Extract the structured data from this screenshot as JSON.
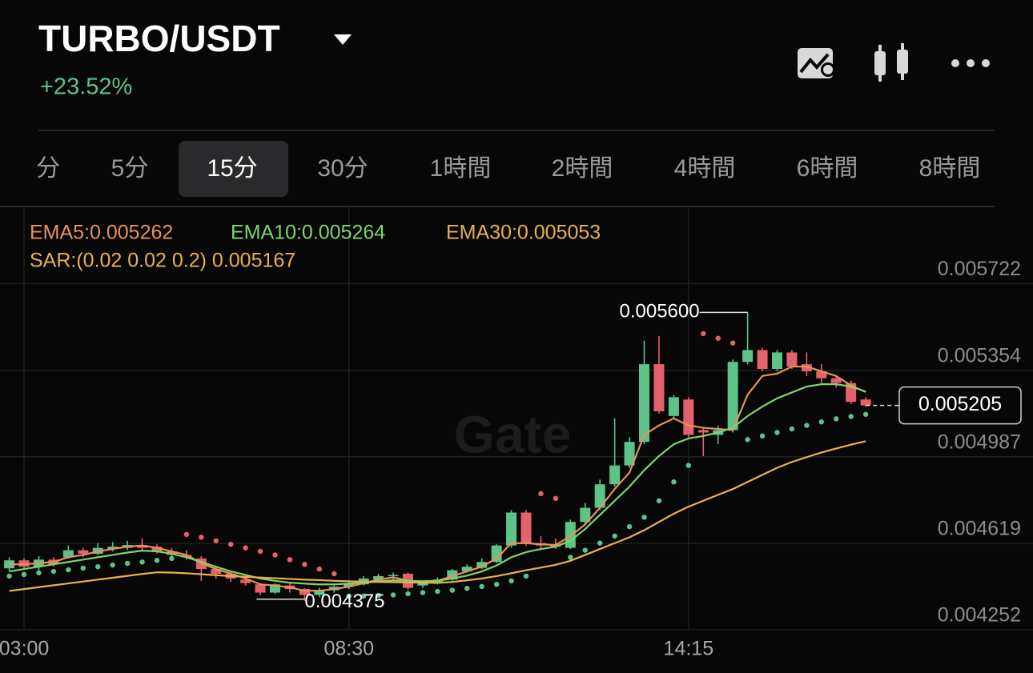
{
  "header": {
    "pair": "TURBO/USDT",
    "change": "+23.52%"
  },
  "tabs": [
    "分",
    "5分",
    "15分",
    "30分",
    "1時間",
    "2時間",
    "4時間",
    "6時間",
    "8時間"
  ],
  "active_tab": 2,
  "chart_data": {
    "type": "candlestick",
    "watermark": "Gate",
    "categories": [
      null,
      "03:00",
      null,
      null,
      null,
      null,
      null,
      null,
      null,
      null,
      null,
      null,
      null,
      null,
      null,
      null,
      null,
      null,
      null,
      null,
      null,
      null,
      null,
      "08:30",
      null,
      null,
      null,
      null,
      null,
      null,
      null,
      null,
      null,
      null,
      null,
      null,
      null,
      null,
      null,
      null,
      null,
      null,
      null,
      null,
      null,
      null,
      "14:15",
      null,
      null,
      null,
      null,
      null,
      null,
      null,
      null,
      null,
      null,
      null,
      null
    ],
    "open": [
      0.004513,
      0.004547,
      0.00452,
      0.00455,
      0.00456,
      0.00459,
      0.004575,
      0.004595,
      0.0046,
      0.004612,
      0.004605,
      0.004585,
      0.00457,
      0.004555,
      0.00451,
      0.00449,
      0.004465,
      0.004445,
      0.00441,
      0.00444,
      0.004425,
      0.0044,
      0.00442,
      0.004435,
      0.004445,
      0.004465,
      0.00448,
      0.00449,
      0.00444,
      0.00445,
      0.004465,
      0.0045,
      0.004515,
      0.00454,
      0.00461,
      0.00475,
      0.00462,
      0.004615,
      0.0046,
      0.00471,
      0.00477,
      0.00487,
      0.00495,
      0.00505,
      0.00538,
      0.00516,
      0.00523,
      0.0051,
      0.00508,
      0.0051,
      0.00539,
      0.00544,
      0.00536,
      0.00543,
      0.00538,
      0.00535,
      0.00532,
      0.0053,
      0.00523
    ],
    "high": [
      0.00456,
      0.004555,
      0.004565,
      0.00456,
      0.00461,
      0.0046,
      0.00462,
      0.004625,
      0.00463,
      0.00464,
      0.004615,
      0.0046,
      0.00459,
      0.004565,
      0.00452,
      0.0045,
      0.004475,
      0.00445,
      0.00445,
      0.00445,
      0.00443,
      0.00443,
      0.00444,
      0.00446,
      0.00448,
      0.00449,
      0.004495,
      0.004495,
      0.00446,
      0.004475,
      0.00451,
      0.00453,
      0.004555,
      0.004615,
      0.00476,
      0.00476,
      0.00465,
      0.00464,
      0.00472,
      0.00479,
      0.00489,
      0.00515,
      0.00507,
      0.00548,
      0.0055,
      0.00525,
      0.00524,
      0.00511,
      0.00512,
      0.0054,
      0.0056,
      0.00545,
      0.00544,
      0.00544,
      0.00543,
      0.00538,
      0.00533,
      0.00531,
      0.00524
    ],
    "low": [
      0.0045,
      0.00451,
      0.004505,
      0.00452,
      0.004555,
      0.00456,
      0.00457,
      0.004585,
      0.00459,
      0.004585,
      0.004575,
      0.00456,
      0.00455,
      0.00446,
      0.00447,
      0.004455,
      0.00444,
      0.0044,
      0.004405,
      0.00441,
      0.004375,
      0.00439,
      0.00441,
      0.004425,
      0.00444,
      0.004455,
      0.00446,
      0.00442,
      0.00443,
      0.004445,
      0.00446,
      0.004495,
      0.00451,
      0.004535,
      0.0046,
      0.00461,
      0.00459,
      0.004595,
      0.004595,
      0.0047,
      0.00476,
      0.00486,
      0.00494,
      0.00504,
      0.00517,
      0.00515,
      0.00507,
      0.00499,
      0.00504,
      0.00509,
      0.00538,
      0.00535,
      0.00535,
      0.00536,
      0.00533,
      0.0053,
      0.00528,
      0.00521,
      0.0052
    ],
    "close": [
      0.004547,
      0.00452,
      0.00455,
      0.00453,
      0.00459,
      0.004575,
      0.0046,
      0.004605,
      0.004612,
      0.0046,
      0.004585,
      0.00457,
      0.00456,
      0.00451,
      0.00449,
      0.00447,
      0.00445,
      0.00441,
      0.004445,
      0.004425,
      0.0044,
      0.00442,
      0.004435,
      0.00445,
      0.00447,
      0.00448,
      0.004485,
      0.00443,
      0.004455,
      0.004465,
      0.004505,
      0.00452,
      0.00454,
      0.00461,
      0.00475,
      0.00462,
      0.00461,
      0.004605,
      0.00471,
      0.00477,
      0.00487,
      0.00495,
      0.00505,
      0.00538,
      0.00518,
      0.00524,
      0.00508,
      0.00509,
      0.0051,
      0.00539,
      0.00544,
      0.00536,
      0.00543,
      0.00537,
      0.00535,
      0.00532,
      0.0053,
      0.00522,
      0.005205
    ],
    "up_color": "#5dc389",
    "down_color": "#e5626d",
    "series": [
      {
        "name": "EMA5:0.005262",
        "color": "#e8925a",
        "values": [
          0.00453,
          0.00453,
          0.004535,
          0.00454,
          0.00456,
          0.00457,
          0.004585,
          0.004595,
          0.004605,
          0.00461,
          0.0046,
          0.004585,
          0.00457,
          0.004535,
          0.00451,
          0.00449,
          0.00447,
          0.004445,
          0.00444,
          0.004432,
          0.004418,
          0.004418,
          0.004425,
          0.004435,
          0.00445,
          0.004465,
          0.004475,
          0.00446,
          0.004458,
          0.00446,
          0.00448,
          0.0045,
          0.00452,
          0.004555,
          0.00462,
          0.00462,
          0.004615,
          0.004612,
          0.00465,
          0.0047,
          0.00477,
          0.00485,
          0.00492,
          0.00508,
          0.00512,
          0.00515,
          0.00512,
          0.00511,
          0.005105,
          0.0051,
          0.00525,
          0.00533,
          0.00534,
          0.00537,
          0.00537,
          0.00535,
          0.00533,
          0.00529,
          0.005262
        ]
      },
      {
        "name": "EMA10:0.005264",
        "color": "#7fd46b",
        "values": [
          0.0045,
          0.00451,
          0.00452,
          0.00453,
          0.00454,
          0.00455,
          0.00456,
          0.00457,
          0.00458,
          0.004588,
          0.004585,
          0.004575,
          0.00456,
          0.00454,
          0.00452,
          0.0045,
          0.004485,
          0.00447,
          0.00446,
          0.004452,
          0.004448,
          0.004445,
          0.004445,
          0.004448,
          0.004452,
          0.004458,
          0.004462,
          0.00446,
          0.004458,
          0.00446,
          0.00447,
          0.004482,
          0.0045,
          0.004525,
          0.00456,
          0.004582,
          0.004595,
          0.004605,
          0.00463,
          0.00468,
          0.00474,
          0.0048,
          0.00486,
          0.00493,
          0.00499,
          0.00504,
          0.005065,
          0.005075,
          0.00509,
          0.00511,
          0.00516,
          0.0052,
          0.005235,
          0.00526,
          0.005285,
          0.005295,
          0.005295,
          0.005285,
          0.005264
        ]
      },
      {
        "name": "EMA30:0.005053",
        "color": "#e9b04d",
        "values": [
          0.004417,
          0.004425,
          0.004433,
          0.004441,
          0.004449,
          0.004457,
          0.004465,
          0.004473,
          0.004481,
          0.004489,
          0.004496,
          0.004495,
          0.004492,
          0.004488,
          0.004484,
          0.00448,
          0.004477,
          0.004474,
          0.004471,
          0.004468,
          0.004465,
          0.004463,
          0.00446,
          0.004458,
          0.004456,
          0.004455,
          0.004454,
          0.004453,
          0.004452,
          0.004451,
          0.004455,
          0.004462,
          0.00447,
          0.00448,
          0.004492,
          0.004505,
          0.004516,
          0.004528,
          0.004545,
          0.00457,
          0.004595,
          0.00462,
          0.004645,
          0.004675,
          0.00471,
          0.004745,
          0.004775,
          0.0048,
          0.004825,
          0.00485,
          0.00488,
          0.00491,
          0.00494,
          0.004965,
          0.004985,
          0.005005,
          0.005022,
          0.005038,
          0.005053
        ]
      }
    ],
    "sar": {
      "name": "SAR:(0.02 0.02 0.2) 0.005167",
      "color": "#e9b04d",
      "values": [
        0.00448,
        0.004487,
        0.004494,
        0.0045,
        0.004507,
        0.004514,
        0.00452,
        0.004527,
        0.004534,
        0.00454,
        0.004547,
        0.004555,
        0.004657,
        0.004645,
        0.00463,
        0.004615,
        0.0046,
        0.004585,
        0.00457,
        0.00455,
        0.00453,
        0.00451,
        0.00449,
        0.004395,
        0.004395,
        0.004398,
        0.0044,
        0.004405,
        0.00441,
        0.004415,
        0.00442,
        0.004428,
        0.004436,
        0.004445,
        0.00446,
        0.00448,
        0.00483,
        0.00481,
        0.00456,
        0.00459,
        0.00462,
        0.00465,
        0.00469,
        0.00473,
        0.0048,
        0.00488,
        0.00495,
        0.00551,
        0.00549,
        0.00547,
        0.00506,
        0.005075,
        0.00509,
        0.005105,
        0.00512,
        0.005135,
        0.005148,
        0.005158,
        0.005167
      ]
    },
    "annotations": [
      {
        "value": 0.0056,
        "label": "0.005600"
      },
      {
        "value": 0.004375,
        "label": "0.004375"
      }
    ],
    "last_price": 0.005205,
    "ylim": [
      0.004252,
      0.00605
    ],
    "yticks": [
      0.004252,
      0.004619,
      0.004987,
      0.005354,
      0.005722
    ],
    "grid": true
  }
}
